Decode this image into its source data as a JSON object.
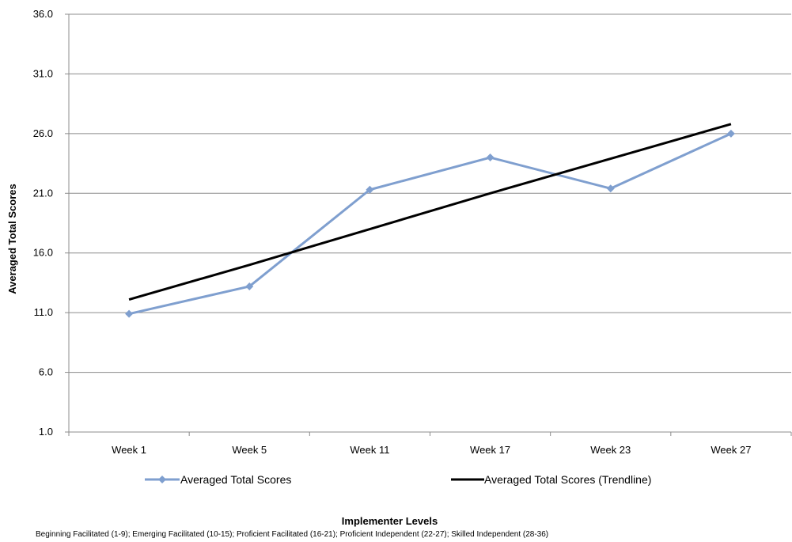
{
  "chart_data": {
    "type": "line",
    "categories": [
      "Week 1",
      "Week 5",
      "Week 11",
      "Week 17",
      "Week 23",
      "Week 27"
    ],
    "series": [
      {
        "name": "Averaged Total Scores",
        "values": [
          10.9,
          13.2,
          21.3,
          24.0,
          21.4,
          26.0
        ],
        "color": "#7f9fcf",
        "marker": "diamond"
      },
      {
        "name": "Averaged Total Scores (Trendline)",
        "values": [
          12.1,
          15.0,
          18.0,
          21.0,
          23.9,
          26.8
        ],
        "color": "#000000",
        "marker": "none"
      }
    ],
    "ylabel": "Averaged Total Scores",
    "xlabel": "Implementer Levels",
    "ylim": [
      1.0,
      36.0
    ],
    "yticks": [
      "1.0",
      "6.0",
      "11.0",
      "16.0",
      "21.0",
      "26.0",
      "31.0",
      "36.0"
    ],
    "ytick_values": [
      1,
      6,
      11,
      16,
      21,
      26,
      31,
      36
    ],
    "grid": "horizontal",
    "legend_position": "bottom",
    "note": "Beginning Facilitated (1-9); Emerging Facilitated (10-15); Proficient Facilitated (16-21); Proficient Independent (22-27); Skilled Independent (28-36)"
  }
}
